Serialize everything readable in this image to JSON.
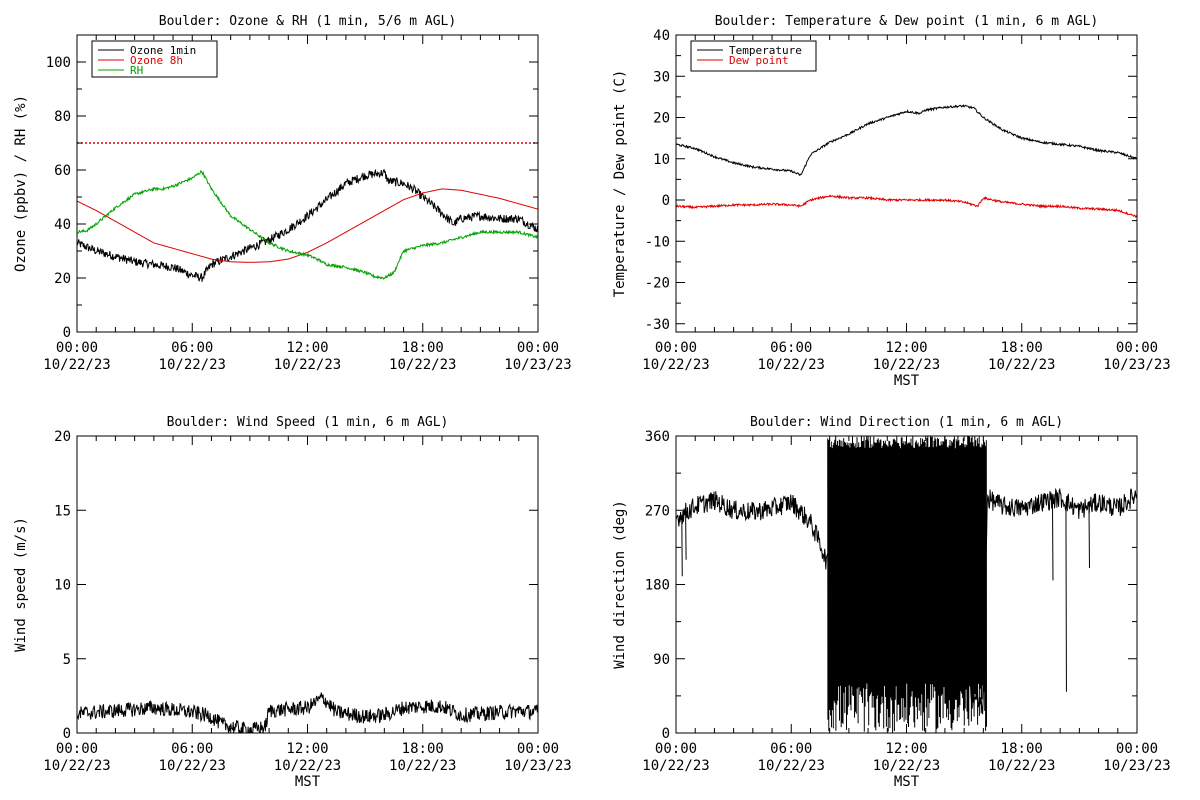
{
  "chart_data": [
    {
      "id": "ozone_rh",
      "type": "line",
      "title": "Boulder: Ozone & RH (1 min, 5/6 m AGL)",
      "xlabel": "",
      "ylabel": "Ozone (ppbv) / RH (%)",
      "ylim": [
        0,
        110
      ],
      "xlim_hours": [
        0,
        24
      ],
      "yticks": [
        0,
        20,
        40,
        60,
        80,
        100
      ],
      "xticks": [
        {
          "hour": 0,
          "time": "00:00",
          "date": "10/22/23"
        },
        {
          "hour": 6,
          "time": "06:00",
          "date": "10/22/23"
        },
        {
          "hour": 12,
          "time": "12:00",
          "date": "10/22/23"
        },
        {
          "hour": 18,
          "time": "18:00",
          "date": "10/22/23"
        },
        {
          "hour": 24,
          "time": "00:00",
          "date": "10/23/23"
        }
      ],
      "legend": [
        "Ozone 1min",
        "Ozone 8h",
        "RH"
      ],
      "legend_position": "top-left",
      "reference_line": {
        "y": 70,
        "style": "dotted",
        "color": "#e00000"
      },
      "series": [
        {
          "name": "Ozone 1min",
          "color": "#000000",
          "noise": 1.6,
          "points": [
            [
              0,
              33
            ],
            [
              1,
              30
            ],
            [
              2,
              28
            ],
            [
              3,
              26
            ],
            [
              4,
              25
            ],
            [
              5,
              24
            ],
            [
              6,
              21
            ],
            [
              6.5,
              20
            ],
            [
              7,
              25
            ],
            [
              8,
              28
            ],
            [
              9,
              31
            ],
            [
              10,
              34
            ],
            [
              11,
              38
            ],
            [
              12,
              43
            ],
            [
              13,
              49
            ],
            [
              14,
              55
            ],
            [
              15,
              58
            ],
            [
              16,
              59
            ],
            [
              16.2,
              56
            ],
            [
              17,
              55
            ],
            [
              17.5,
              53
            ],
            [
              18,
              50
            ],
            [
              19,
              44
            ],
            [
              19.6,
              40
            ],
            [
              20,
              42
            ],
            [
              21,
              43
            ],
            [
              22,
              42
            ],
            [
              23,
              42
            ],
            [
              24,
              38
            ]
          ]
        },
        {
          "name": "Ozone 8h",
          "color": "#e00000",
          "noise": 0,
          "points": [
            [
              0,
              48.5
            ],
            [
              1,
              45
            ],
            [
              2,
              41
            ],
            [
              3,
              37
            ],
            [
              4,
              33
            ],
            [
              5,
              31
            ],
            [
              6,
              29
            ],
            [
              7,
              27
            ],
            [
              8,
              26
            ],
            [
              9,
              25.8
            ],
            [
              10,
              26
            ],
            [
              11,
              27
            ],
            [
              12,
              29.5
            ],
            [
              13,
              33
            ],
            [
              14,
              37
            ],
            [
              15,
              41
            ],
            [
              16,
              45
            ],
            [
              17,
              49
            ],
            [
              18,
              51.5
            ],
            [
              19,
              53
            ],
            [
              20,
              52.5
            ],
            [
              21,
              51
            ],
            [
              22,
              49.5
            ],
            [
              23,
              47.5
            ],
            [
              24,
              45.5
            ]
          ]
        },
        {
          "name": "RH",
          "color": "#00a000",
          "noise": 0.5,
          "points": [
            [
              0,
              37
            ],
            [
              0.5,
              37.5
            ],
            [
              1,
              40
            ],
            [
              2,
              46
            ],
            [
              3,
              51
            ],
            [
              4,
              53
            ],
            [
              4.5,
              53
            ],
            [
              5,
              54
            ],
            [
              6,
              57
            ],
            [
              6.5,
              59.5
            ],
            [
              7,
              53
            ],
            [
              7.5,
              48
            ],
            [
              8,
              43
            ],
            [
              9,
              38
            ],
            [
              10,
              33
            ],
            [
              11,
              30
            ],
            [
              12,
              28.5
            ],
            [
              12.5,
              27
            ],
            [
              13,
              25
            ],
            [
              14,
              24
            ],
            [
              15,
              22
            ],
            [
              15.5,
              20.5
            ],
            [
              16,
              20
            ],
            [
              16.5,
              22
            ],
            [
              17,
              30
            ],
            [
              18,
              32
            ],
            [
              19,
              33
            ],
            [
              20,
              35
            ],
            [
              21,
              37
            ],
            [
              22,
              37
            ],
            [
              23,
              37
            ],
            [
              24,
              35
            ]
          ]
        }
      ]
    },
    {
      "id": "temp_dew",
      "type": "line",
      "title": "Boulder: Temperature & Dew point (1 min, 6 m AGL)",
      "xlabel": "MST",
      "ylabel": "Temperature / Dew point (C)",
      "ylim": [
        -32,
        40
      ],
      "xlim_hours": [
        0,
        24
      ],
      "yticks": [
        -30,
        -20,
        -10,
        0,
        10,
        20,
        30,
        40
      ],
      "xticks": [
        {
          "hour": 0,
          "time": "00:00",
          "date": "10/22/23"
        },
        {
          "hour": 6,
          "time": "06:00",
          "date": "10/22/23"
        },
        {
          "hour": 12,
          "time": "12:00",
          "date": "10/22/23"
        },
        {
          "hour": 18,
          "time": "18:00",
          "date": "10/22/23"
        },
        {
          "hour": 24,
          "time": "00:00",
          "date": "10/23/23"
        }
      ],
      "legend": [
        "Temperature",
        "Dew point"
      ],
      "legend_position": "top-left",
      "series": [
        {
          "name": "Temperature",
          "color": "#000000",
          "noise": 0.25,
          "points": [
            [
              0,
              13.5
            ],
            [
              1,
              12.5
            ],
            [
              2,
              10.5
            ],
            [
              3,
              9
            ],
            [
              4,
              8
            ],
            [
              5,
              7.5
            ],
            [
              6,
              7
            ],
            [
              6.5,
              6
            ],
            [
              7,
              11
            ],
            [
              8,
              14
            ],
            [
              9,
              16
            ],
            [
              10,
              18.5
            ],
            [
              11,
              20
            ],
            [
              12,
              21.5
            ],
            [
              12.7,
              21
            ],
            [
              13,
              21.8
            ],
            [
              14,
              22.5
            ],
            [
              15,
              22.8
            ],
            [
              15.5,
              22.3
            ],
            [
              16,
              20
            ],
            [
              17,
              17
            ],
            [
              18,
              15
            ],
            [
              19,
              14
            ],
            [
              20,
              13.5
            ],
            [
              21,
              13
            ],
            [
              22,
              12
            ],
            [
              23,
              11.5
            ],
            [
              24,
              10
            ]
          ]
        },
        {
          "name": "Dew point",
          "color": "#e00000",
          "noise": 0.25,
          "points": [
            [
              0,
              -1.5
            ],
            [
              1,
              -1.8
            ],
            [
              2,
              -1.5
            ],
            [
              3,
              -1.2
            ],
            [
              4,
              -1.2
            ],
            [
              5,
              -1
            ],
            [
              6,
              -1.2
            ],
            [
              6.5,
              -1.5
            ],
            [
              7,
              0
            ],
            [
              8,
              1
            ],
            [
              9,
              0.5
            ],
            [
              10,
              0.5
            ],
            [
              11,
              0
            ],
            [
              12,
              0
            ],
            [
              13,
              0
            ],
            [
              14,
              0
            ],
            [
              15,
              -0.5
            ],
            [
              15.7,
              -1.5
            ],
            [
              16,
              0.5
            ],
            [
              17,
              -0.5
            ],
            [
              18,
              -1
            ],
            [
              19,
              -1.5
            ],
            [
              20,
              -1.5
            ],
            [
              21,
              -2
            ],
            [
              22,
              -2.2
            ],
            [
              23,
              -2.5
            ],
            [
              24,
              -4
            ]
          ]
        }
      ]
    },
    {
      "id": "wind_speed",
      "type": "line",
      "title": "Boulder: Wind Speed (1 min, 6 m AGL)",
      "xlabel": "MST",
      "ylabel": "Wind speed (m/s)",
      "ylim": [
        0,
        20
      ],
      "xlim_hours": [
        0,
        24
      ],
      "yticks": [
        0,
        5,
        10,
        15,
        20
      ],
      "xticks": [
        {
          "hour": 0,
          "time": "00:00",
          "date": "10/22/23"
        },
        {
          "hour": 6,
          "time": "06:00",
          "date": "10/22/23"
        },
        {
          "hour": 12,
          "time": "12:00",
          "date": "10/22/23"
        },
        {
          "hour": 18,
          "time": "18:00",
          "date": "10/22/23"
        },
        {
          "hour": 24,
          "time": "00:00",
          "date": "10/23/23"
        }
      ],
      "series": [
        {
          "name": "",
          "color": "#000000",
          "noise": 0.5,
          "points": [
            [
              0,
              1.3
            ],
            [
              2,
              1.5
            ],
            [
              4,
              1.7
            ],
            [
              6,
              1.4
            ],
            [
              7,
              1.1
            ],
            [
              7.5,
              0.6
            ],
            [
              8.5,
              0.3
            ],
            [
              9,
              0.2
            ],
            [
              9.8,
              0.4
            ],
            [
              10,
              1.5
            ],
            [
              11,
              1.6
            ],
            [
              12,
              1.7
            ],
            [
              12.8,
              2.4
            ],
            [
              13.5,
              1.4
            ],
            [
              15,
              1.1
            ],
            [
              16,
              1.2
            ],
            [
              17,
              1.7
            ],
            [
              18,
              1.8
            ],
            [
              19,
              1.8
            ],
            [
              20,
              1.2
            ],
            [
              21,
              1.3
            ],
            [
              22,
              1.4
            ],
            [
              23,
              1.5
            ],
            [
              24,
              1.4
            ]
          ]
        }
      ]
    },
    {
      "id": "wind_dir",
      "type": "line",
      "title": "Boulder: Wind Direction (1 min, 6 m AGL)",
      "xlabel": "MST",
      "ylabel": "Wind direction (deg)",
      "ylim": [
        0,
        360
      ],
      "xlim_hours": [
        0,
        24
      ],
      "yticks": [
        0,
        90,
        180,
        270,
        360
      ],
      "xticks": [
        {
          "hour": 0,
          "time": "00:00",
          "date": "10/22/23"
        },
        {
          "hour": 6,
          "time": "06:00",
          "date": "10/22/23"
        },
        {
          "hour": 12,
          "time": "12:00",
          "date": "10/22/23"
        },
        {
          "hour": 18,
          "time": "18:00",
          "date": "10/22/23"
        },
        {
          "hour": 24,
          "time": "00:00",
          "date": "10/23/23"
        }
      ],
      "series": [
        {
          "name": "",
          "color": "#000000",
          "noise": 12,
          "points": [
            [
              0,
              260
            ],
            [
              1,
              275
            ],
            [
              2,
              282
            ],
            [
              3,
              270
            ],
            [
              4,
              268
            ],
            [
              5,
              272
            ],
            [
              6,
              280
            ],
            [
              7,
              255
            ],
            [
              7.5,
              230
            ],
            [
              7.8,
              210
            ],
            [
              8,
              200
            ],
            [
              9,
              150
            ],
            [
              10,
              120
            ],
            [
              11,
              160
            ],
            [
              12,
              140
            ],
            [
              13,
              100
            ],
            [
              14,
              80
            ],
            [
              15,
              60
            ],
            [
              16,
              30
            ],
            [
              16.2,
              285
            ],
            [
              17,
              275
            ],
            [
              18,
              272
            ],
            [
              19,
              280
            ],
            [
              20,
              285
            ],
            [
              21,
              270
            ],
            [
              22,
              280
            ],
            [
              23,
              272
            ],
            [
              24,
              290
            ]
          ]
        },
        {
          "name": "",
          "color": "#000000",
          "noise": 0,
          "style": "spikes",
          "spike_windows": [
            [
              7.9,
              16.2
            ]
          ],
          "spike_count": 180,
          "spike_range": [
            0,
            360
          ]
        },
        {
          "name": "",
          "color": "#000000",
          "noise": 0,
          "style": "dips",
          "dips": [
            [
              0.3,
              190
            ],
            [
              0.5,
              210
            ],
            [
              19.6,
              185
            ],
            [
              20.3,
              50
            ],
            [
              21.5,
              200
            ]
          ]
        }
      ]
    }
  ]
}
